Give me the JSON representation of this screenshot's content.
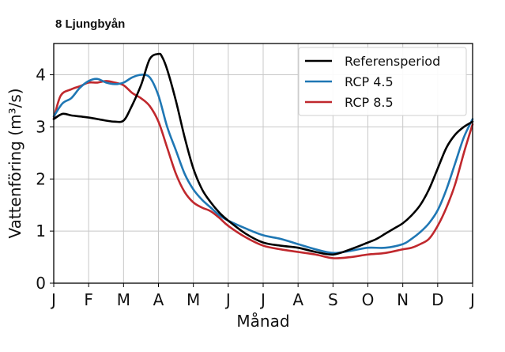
{
  "chart_data": {
    "type": "line",
    "title": "8 Ljungbyån",
    "xlabel": "Månad",
    "ylabel": "Vattenföring (m³/s)",
    "xlim": [
      0,
      12
    ],
    "ylim": [
      0,
      4.6
    ],
    "x_ticks": [
      0,
      1,
      2,
      3,
      4,
      5,
      6,
      7,
      8,
      9,
      10,
      11,
      12
    ],
    "x_tick_labels": [
      "J",
      "F",
      "M",
      "A",
      "M",
      "J",
      "J",
      "A",
      "S",
      "O",
      "N",
      "D",
      "J"
    ],
    "y_ticks": [
      0,
      1,
      2,
      3,
      4
    ],
    "grid": true,
    "legend_position": "top-right",
    "series": [
      {
        "name": "Referensperiod",
        "color": "#000000",
        "x": [
          0,
          0.25,
          0.5,
          0.75,
          1,
          1.25,
          1.5,
          1.75,
          2,
          2.2,
          2.5,
          2.75,
          3,
          3.1,
          3.25,
          3.5,
          3.75,
          4,
          4.25,
          4.5,
          4.75,
          5,
          5.5,
          6,
          6.5,
          7,
          7.5,
          8,
          8.5,
          9,
          9.25,
          9.5,
          9.75,
          10,
          10.25,
          10.5,
          10.75,
          11,
          11.25,
          11.5,
          11.75,
          12
        ],
        "values": [
          3.15,
          3.25,
          3.22,
          3.2,
          3.18,
          3.15,
          3.12,
          3.1,
          3.12,
          3.35,
          3.8,
          4.3,
          4.4,
          4.35,
          4.1,
          3.5,
          2.8,
          2.2,
          1.8,
          1.55,
          1.35,
          1.2,
          0.95,
          0.78,
          0.72,
          0.68,
          0.6,
          0.55,
          0.65,
          0.78,
          0.85,
          0.95,
          1.05,
          1.15,
          1.3,
          1.5,
          1.8,
          2.2,
          2.6,
          2.85,
          3.0,
          3.1
        ]
      },
      {
        "name": "RCP 4.5",
        "color": "#1f77b4",
        "x": [
          0,
          0.25,
          0.5,
          0.75,
          1,
          1.25,
          1.5,
          1.75,
          2,
          2.25,
          2.5,
          2.75,
          3,
          3.25,
          3.5,
          3.75,
          4,
          4.25,
          4.5,
          4.75,
          5,
          5.5,
          6,
          6.5,
          7,
          7.5,
          8,
          8.5,
          9,
          9.5,
          10,
          10.25,
          10.5,
          10.75,
          11,
          11.25,
          11.5,
          11.75,
          12
        ],
        "values": [
          3.2,
          3.45,
          3.55,
          3.75,
          3.88,
          3.92,
          3.85,
          3.82,
          3.85,
          3.95,
          4.0,
          3.95,
          3.6,
          3.0,
          2.55,
          2.1,
          1.8,
          1.6,
          1.45,
          1.3,
          1.2,
          1.05,
          0.92,
          0.85,
          0.75,
          0.65,
          0.58,
          0.62,
          0.68,
          0.68,
          0.75,
          0.85,
          0.98,
          1.15,
          1.4,
          1.8,
          2.3,
          2.8,
          3.15
        ]
      },
      {
        "name": "RCP 8.5",
        "color": "#c0282d",
        "x": [
          0,
          0.2,
          0.5,
          0.75,
          1,
          1.25,
          1.5,
          1.75,
          2,
          2.25,
          2.5,
          2.75,
          3,
          3.25,
          3.5,
          3.75,
          4,
          4.25,
          4.5,
          4.75,
          5,
          5.5,
          6,
          6.5,
          7,
          7.5,
          8,
          8.5,
          9,
          9.5,
          10,
          10.25,
          10.5,
          10.75,
          11,
          11.25,
          11.5,
          11.75,
          12
        ],
        "values": [
          3.15,
          3.6,
          3.72,
          3.78,
          3.85,
          3.85,
          3.88,
          3.85,
          3.8,
          3.65,
          3.55,
          3.4,
          3.1,
          2.6,
          2.1,
          1.75,
          1.55,
          1.45,
          1.38,
          1.25,
          1.1,
          0.88,
          0.72,
          0.65,
          0.6,
          0.55,
          0.48,
          0.5,
          0.55,
          0.58,
          0.65,
          0.68,
          0.75,
          0.85,
          1.1,
          1.45,
          1.9,
          2.5,
          3.05
        ]
      }
    ]
  }
}
